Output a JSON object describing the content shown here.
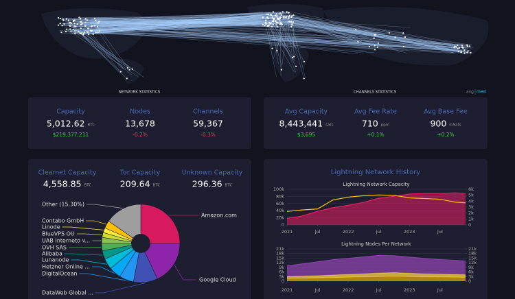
{
  "network_statistics": {
    "title": "NETWORK STATISTICS",
    "items": [
      {
        "label": "Capacity",
        "value": "5,012.62",
        "unit": "BTC",
        "change": "$219,377,211"
      },
      {
        "label": "Nodes",
        "value": "13,678",
        "change": "-0.2%"
      },
      {
        "label": "Channels",
        "value": "59,367",
        "change": "-0.3%"
      }
    ]
  },
  "channels_statistics": {
    "title": "CHANNELS STATISTICS",
    "toggle": [
      "avg",
      "med"
    ],
    "items": [
      {
        "label": "Avg Capacity",
        "value": "8,443,441",
        "unit": "sats",
        "change": "$3,695"
      },
      {
        "label": "Avg Fee Rate",
        "value": "710",
        "unit": "ppm",
        "change": "+0.1%"
      },
      {
        "label": "Avg Base Fee",
        "value": "900",
        "unit": "mSats",
        "change": "+0.2%"
      }
    ]
  },
  "capacity_breakdown": {
    "items": [
      {
        "label": "Clearnet Capacity",
        "value": "4,558.85",
        "unit": "BTC"
      },
      {
        "label": "Tor Capacity",
        "value": "209.64",
        "unit": "BTC"
      },
      {
        "label": "Unknown Capacity",
        "value": "296.36",
        "unit": "BTC"
      }
    ]
  },
  "history_title": "Lightning Network History",
  "chart_data": [
    {
      "type": "pie",
      "categories": [
        "Amazon.com",
        "Google Cloud",
        "DataWeb Global ...",
        "DigitalOcean",
        "Hetzner Online ...",
        "Lunanode",
        "Alibaba",
        "OVH SAS",
        "UAB Interneto v...",
        "BlueVPS OU",
        "Linode",
        "Contabo GmbH",
        "Other (15.30%)"
      ],
      "values": [
        25,
        18,
        10,
        6,
        5,
        4.5,
        3.5,
        3,
        2.5,
        2,
        2,
        3.2,
        15.3
      ],
      "colors": [
        "#d81b60",
        "#8e24aa",
        "#3f51b5",
        "#2196f3",
        "#03a9f4",
        "#00bcd4",
        "#009688",
        "#4caf50",
        "#8bc34a",
        "#cddc39",
        "#ffeb3b",
        "#ffc107",
        "#9e9e9e"
      ]
    },
    {
      "type": "line",
      "title": "Lightning Network Capacity",
      "x": [
        "2021-01",
        "2021-04",
        "2021-07",
        "2021-10",
        "2022-01",
        "2022-04",
        "2022-07",
        "2022-10",
        "2023-01",
        "2023-04",
        "2023-07",
        "2023-10",
        "2023-12"
      ],
      "xlim": [
        "2021-01",
        "2023-12"
      ],
      "xticks": [
        {
          "value": "2021-01",
          "label": "2021"
        },
        {
          "value": "2021-07",
          "label": "Jul"
        },
        {
          "value": "2022-01",
          "label": "2022"
        },
        {
          "value": "2022-07",
          "label": "Jul"
        },
        {
          "value": "2023-01",
          "label": "2023"
        },
        {
          "value": "2023-07",
          "label": "Jul"
        }
      ],
      "ylim": [
        0,
        100000
      ],
      "yticks": [
        0,
        {
          "value": 20000,
          "label": "20k"
        },
        {
          "value": 40000,
          "label": "40k"
        },
        {
          "value": 60000,
          "label": "60k"
        },
        {
          "value": 80000,
          "label": "80k"
        },
        {
          "value": 100000,
          "label": "100k"
        }
      ],
      "y2lim": [
        0,
        6000
      ],
      "y2ticks": [
        0,
        {
          "value": 1000,
          "label": "1k"
        },
        {
          "value": 2000,
          "label": "2k"
        },
        {
          "value": 3000,
          "label": "3k"
        },
        {
          "value": 4000,
          "label": "4k"
        },
        {
          "value": 5000,
          "label": "5k"
        },
        {
          "value": 6000,
          "label": "6k"
        }
      ],
      "grid": true,
      "series": [
        {
          "color": "#e91e63",
          "fill": true,
          "axis": "y2",
          "values": [
            1100,
            1500,
            2300,
            2900,
            3300,
            3800,
            4500,
            4800,
            5200,
            5300,
            5300,
            5400,
            5300
          ]
        },
        {
          "color": "#ffc107",
          "values": [
            38000,
            42000,
            45000,
            70000,
            78000,
            82000,
            84000,
            83000,
            76000,
            74000,
            72000,
            64000,
            62000
          ]
        }
      ]
    },
    {
      "type": "area",
      "title": "Lightning Nodes Per Network",
      "stacked": true,
      "x": [
        "2021-01",
        "2021-04",
        "2021-07",
        "2021-10",
        "2022-01",
        "2022-04",
        "2022-07",
        "2022-10",
        "2023-01",
        "2023-04",
        "2023-07",
        "2023-10",
        "2023-12"
      ],
      "xlim": [
        "2021-01",
        "2023-12"
      ],
      "xticks": [
        {
          "value": "2021-01",
          "label": "2021"
        },
        {
          "value": "2021-07",
          "label": "Jul"
        },
        {
          "value": "2022-01",
          "label": "2022"
        },
        {
          "value": "2022-07",
          "label": "Jul"
        },
        {
          "value": "2023-01",
          "label": "2023"
        },
        {
          "value": "2023-07",
          "label": "Jul"
        }
      ],
      "ylim": [
        0,
        21000
      ],
      "yticks": [
        0,
        {
          "value": 3000,
          "label": "3k"
        },
        {
          "value": 6000,
          "label": "6k"
        },
        {
          "value": 9000,
          "label": "9k"
        },
        {
          "value": 12000,
          "label": "12k"
        },
        {
          "value": 15000,
          "label": "15k"
        },
        {
          "value": 18000,
          "label": "18k"
        },
        {
          "value": 21000,
          "label": "21k"
        }
      ],
      "y2lim": [
        0,
        21000
      ],
      "y2ticks": [
        0,
        {
          "value": 3000,
          "label": "3k"
        },
        {
          "value": 6000,
          "label": "6k"
        },
        {
          "value": 9000,
          "label": "9k"
        },
        {
          "value": 12000,
          "label": "12k"
        },
        {
          "value": 15000,
          "label": "15k"
        },
        {
          "value": 18000,
          "label": "18k"
        },
        {
          "value": 21000,
          "label": "21k"
        }
      ],
      "grid": true,
      "series": [
        {
          "color": "#e0a800",
          "values": [
            1800,
            2000,
            2200,
            2400,
            2600,
            2800,
            3000,
            3200,
            3000,
            2800,
            2700,
            2600,
            2500
          ]
        },
        {
          "color": "#ffd54f",
          "values": [
            1200,
            1300,
            1400,
            1600,
            1800,
            2000,
            2300,
            2400,
            2200,
            2000,
            1900,
            1800,
            1700
          ]
        },
        {
          "color": "#8e44ad",
          "values": [
            7000,
            8000,
            9000,
            10000,
            10500,
            11000,
            11500,
            11000,
            10500,
            10000,
            9500,
            9200,
            9000
          ]
        }
      ]
    }
  ]
}
